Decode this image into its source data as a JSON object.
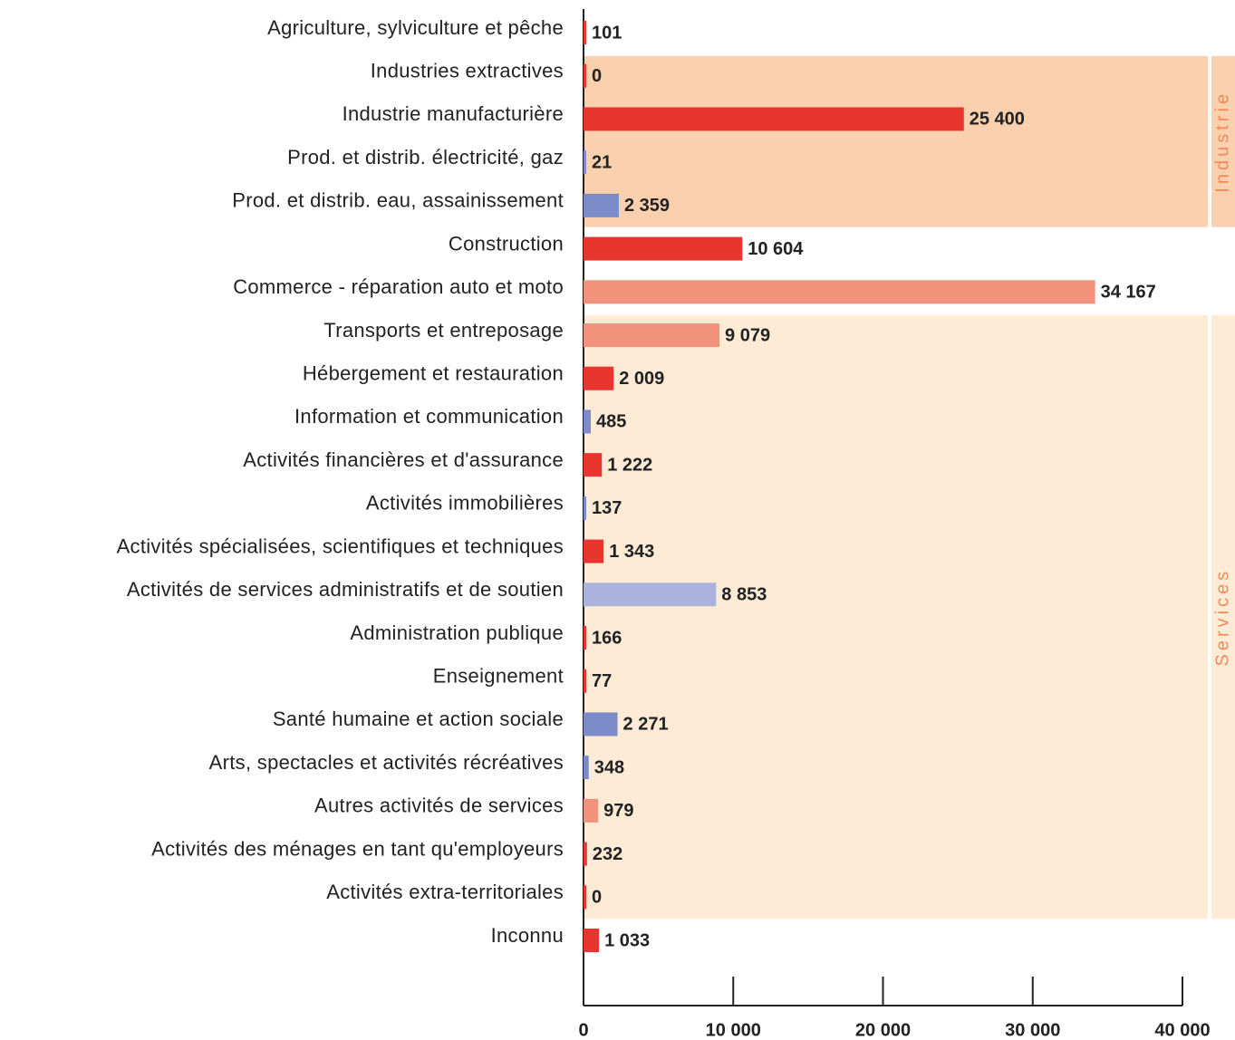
{
  "chart_data": {
    "type": "hbar",
    "categories": [
      "Agriculture, sylviculture et pêche",
      "Industries extractives",
      "Industrie manufacturière",
      "Prod. et distrib. électricité, gaz",
      "Prod. et distrib. eau, assainissement",
      "Construction",
      "Commerce - réparation auto et moto",
      "Transports et entreposage",
      "Hébergement et restauration",
      "Information et communication",
      "Activités financières et d'assurance",
      "Activités immobilières",
      "Activités spécialisées, scientifiques et techniques",
      "Activités de services administratifs et de soutien",
      "Administration publique",
      "Enseignement",
      "Santé humaine et action sociale",
      "Arts, spectacles et activités récréatives",
      "Autres activités de services",
      "Activités des ménages en tant qu'employeurs",
      "Activités extra-territoriales",
      "Inconnu"
    ],
    "values": [
      101,
      0,
      25400,
      21,
      2359,
      10604,
      34167,
      9079,
      2009,
      485,
      1222,
      137,
      1343,
      8853,
      166,
      77,
      2271,
      348,
      979,
      232,
      0,
      1033
    ],
    "value_labels": [
      "101",
      "0",
      "25 400",
      "21",
      "2 359",
      "10 604",
      "34 167",
      "9 079",
      "2 009",
      "485",
      "1 222",
      "137",
      "1 343",
      "8 853",
      "166",
      "77",
      "2 271",
      "348",
      "979",
      "232",
      "0",
      "1 033"
    ],
    "colors": [
      "#e8352d",
      "#e8352d",
      "#e8352d",
      "#7b8cc8",
      "#7b8cc8",
      "#e8352d",
      "#f0937a",
      "#f0937a",
      "#e8352d",
      "#7b8cc8",
      "#e8352d",
      "#7b8cc8",
      "#e8352d",
      "#aab3dc",
      "#e8352d",
      "#e8352d",
      "#7b8cc8",
      "#7b8cc8",
      "#f0937a",
      "#e8352d",
      "#e8352d",
      "#e8352d"
    ],
    "bands": [
      {
        "label": "Industrie",
        "first": "Industries extractives",
        "last": "Prod. et distrib. eau, assainissement",
        "color": "#fbd0ae"
      },
      {
        "label": "Services",
        "first": "Transports et entreposage",
        "last": "Activités extra-territoriales",
        "color": "#fdebd6"
      }
    ],
    "xlim": [
      0,
      40000
    ],
    "xticks": [
      0,
      {
        "value": 10000,
        "label": "10 000"
      },
      {
        "value": 20000,
        "label": "20 000"
      },
      {
        "value": 30000,
        "label": "30 000"
      },
      {
        "value": 40000,
        "label": "40 000"
      }
    ]
  }
}
